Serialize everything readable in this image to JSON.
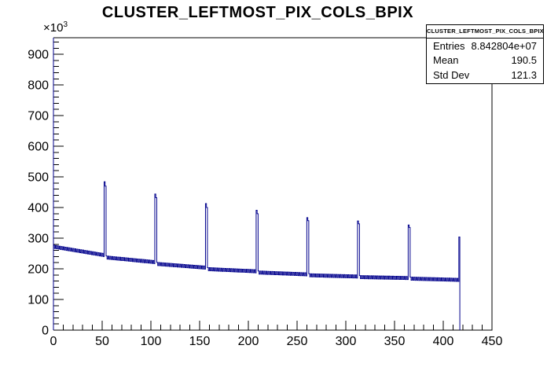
{
  "title": "CLUSTER_LEFTMOST_PIX_COLS_BPIX",
  "y_axis_unit": "×10",
  "y_axis_unit_exp": "3",
  "stats": {
    "header": "CLUSTER_LEFTMOST_PIX_COLS_BPIX",
    "rows": [
      {
        "label": "Entries",
        "value": "8.842804e+07"
      },
      {
        "label": "Mean",
        "value": "190.5"
      },
      {
        "label": "Std Dev",
        "value": "121.3"
      }
    ]
  },
  "axes": {
    "x_max": 450,
    "x_tick_step": 50,
    "x_minor_step": 10,
    "y_max_k": 954,
    "y_tick_step_k": 100,
    "y_minor_step_k": 20,
    "x_tick_labels": [
      "0",
      "50",
      "100",
      "150",
      "200",
      "250",
      "300",
      "350",
      "400",
      "450"
    ],
    "y_tick_labels": [
      "0",
      "100",
      "200",
      "300",
      "400",
      "500",
      "600",
      "700",
      "800",
      "900"
    ]
  },
  "colors": {
    "hist": "#00008c",
    "axis": "#000000",
    "y_axis_line": "#00008c",
    "background": "#ffffff"
  },
  "chart_data": {
    "type": "bar",
    "title": "CLUSTER_LEFTMOST_PIX_COLS_BPIX",
    "ylabel_scale": "×10^3 counts",
    "x_bins": 417,
    "bin_width": 1,
    "xlim": [
      0,
      450
    ],
    "ylim_k": [
      0,
      954
    ],
    "grid": false,
    "legend": "none",
    "line_color": "#00008c",
    "parity_amplitude_k": 5,
    "baseline_segments": [
      [
        0,
        272,
        51,
        245
      ],
      [
        54,
        237,
        103,
        222
      ],
      [
        106,
        216,
        155,
        204
      ],
      [
        158,
        199,
        207,
        192
      ],
      [
        210,
        188,
        259,
        182
      ],
      [
        262,
        179,
        311,
        175
      ],
      [
        314,
        173,
        363,
        170
      ],
      [
        366,
        168,
        415,
        164
      ]
    ],
    "spikes": [
      [
        52,
        484
      ],
      [
        53,
        470
      ],
      [
        104,
        444
      ],
      [
        105,
        432
      ],
      [
        156,
        413
      ],
      [
        157,
        400
      ],
      [
        208,
        391
      ],
      [
        209,
        380
      ],
      [
        260,
        367
      ],
      [
        261,
        357
      ],
      [
        312,
        356
      ],
      [
        313,
        347
      ],
      [
        364,
        343
      ],
      [
        365,
        335
      ],
      [
        416,
        304
      ]
    ]
  }
}
